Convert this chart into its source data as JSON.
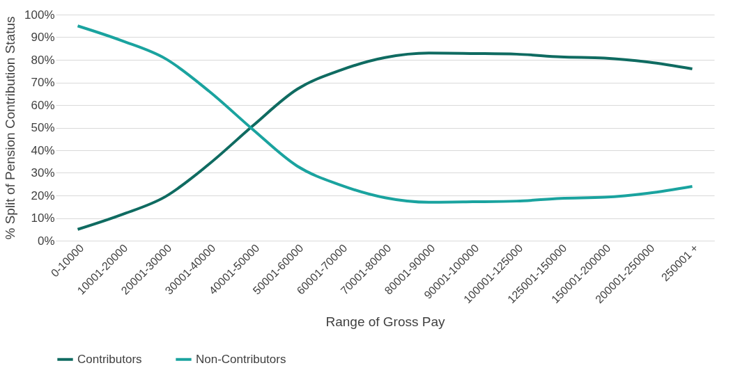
{
  "chart_data": {
    "type": "line",
    "xlabel": "Range of Gross Pay",
    "ylabel": "% Split of Pension Contribution Status",
    "categories": [
      "0-10000",
      "10001-20000",
      "20001-30000",
      "30001-40000",
      "40001-50000",
      "50001-60000",
      "60001-70000",
      "70001-80000",
      "80001-90000",
      "90001-100000",
      "100001-125000",
      "125001-150000",
      "150001-200000",
      "200001-250000",
      "250001 +"
    ],
    "series": [
      {
        "name": "Contributors",
        "color": "#0f6b61",
        "values": [
          5,
          11.5,
          19.5,
          34,
          51,
          67,
          75.5,
          81,
          83,
          82.8,
          82.5,
          81.3,
          80.8,
          79,
          76
        ]
      },
      {
        "name": "Non-Contributors",
        "color": "#1aa39f",
        "values": [
          95,
          88.5,
          80.5,
          66,
          49,
          33,
          24.5,
          19,
          17,
          17.2,
          17.5,
          18.7,
          19.2,
          21,
          24
        ]
      }
    ],
    "ylim": [
      0,
      100
    ],
    "yticks": [
      {
        "value": 0,
        "label": "0%"
      },
      {
        "value": 10,
        "label": "10%"
      },
      {
        "value": 20,
        "label": "20%"
      },
      {
        "value": 30,
        "label": "30%"
      },
      {
        "value": 40,
        "label": "40%"
      },
      {
        "value": 50,
        "label": "50%"
      },
      {
        "value": 60,
        "label": "60%"
      },
      {
        "value": 70,
        "label": "70%"
      },
      {
        "value": 80,
        "label": "80%"
      },
      {
        "value": 90,
        "label": "90%"
      },
      {
        "value": 100,
        "label": "100%"
      }
    ],
    "grid": "y",
    "legend": "bottom",
    "marker": "none",
    "line_style": "solid"
  }
}
